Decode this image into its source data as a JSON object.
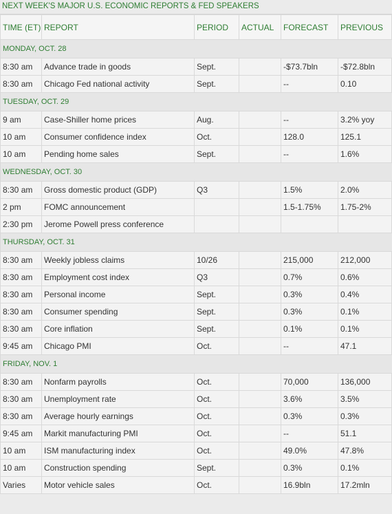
{
  "title": "NEXT WEEK'S MAJOR U.S. ECONOMIC REPORTS & FED SPEAKERS",
  "headers": [
    "TIME (ET)",
    "REPORT",
    "PERIOD",
    "ACTUAL",
    "FORECAST",
    "PREVIOUS"
  ],
  "days": [
    {
      "label": "MONDAY, OCT. 28",
      "rows": [
        [
          "8:30 am",
          "Advance trade in goods",
          "Sept.",
          "",
          "-$73.7bln",
          "-$72.8bln"
        ],
        [
          "8:30 am",
          "Chicago Fed national activity",
          "Sept.",
          "",
          "--",
          "0.10"
        ]
      ]
    },
    {
      "label": "TUESDAY, OCT. 29",
      "rows": [
        [
          "9 am",
          "Case-Shiller home prices",
          "Aug.",
          "",
          "--",
          "3.2% yoy"
        ],
        [
          "10 am",
          "Consumer confidence index",
          "Oct.",
          "",
          "128.0",
          "125.1"
        ],
        [
          "10 am",
          "Pending home sales",
          "Sept.",
          "",
          "--",
          "1.6%"
        ]
      ]
    },
    {
      "label": "WEDNESDAY, OCT. 30",
      "rows": [
        [
          "8:30 am",
          "Gross domestic product (GDP)",
          "Q3",
          "",
          "1.5%",
          "2.0%"
        ],
        [
          "2 pm",
          "FOMC announcement",
          "",
          "",
          "1.5-1.75%",
          "1.75-2%"
        ],
        [
          "2:30 pm",
          "Jerome Powell press conference",
          "",
          "",
          "",
          ""
        ]
      ]
    },
    {
      "label": "THURSDAY, OCT. 31",
      "rows": [
        [
          "8:30 am",
          "Weekly jobless claims",
          "10/26",
          "",
          "215,000",
          "212,000"
        ],
        [
          "8:30 am",
          "Employment cost index",
          "Q3",
          "",
          "0.7%",
          "0.6%"
        ],
        [
          "8:30 am",
          "Personal income",
          "Sept.",
          "",
          "0.3%",
          "0.4%"
        ],
        [
          "8:30 am",
          "Consumer spending",
          "Sept.",
          "",
          "0.3%",
          "0.1%"
        ],
        [
          "8:30 am",
          "Core inflation",
          "Sept.",
          "",
          "0.1%",
          "0.1%"
        ],
        [
          "9:45 am",
          "Chicago PMI",
          "Oct.",
          "",
          "--",
          "47.1"
        ]
      ]
    },
    {
      "label": "FRIDAY, NOV. 1",
      "rows": [
        [
          "8:30 am",
          "Nonfarm payrolls",
          "Oct.",
          "",
          "70,000",
          "136,000"
        ],
        [
          "8:30 am",
          "Unemployment rate",
          "Oct.",
          "",
          "3.6%",
          "3.5%"
        ],
        [
          "8:30 am",
          "Average hourly earnings",
          "Oct.",
          "",
          "0.3%",
          "0.3%"
        ],
        [
          "9:45 am",
          "Markit manufacturing PMI",
          "Oct.",
          "",
          "--",
          "51.1"
        ],
        [
          "10 am",
          "ISM manufacturing index",
          "Oct.",
          "",
          "49.0%",
          "47.8%"
        ],
        [
          "10 am",
          "Construction spending",
          "Sept.",
          "",
          "0.3%",
          "0.1%"
        ],
        [
          "Varies",
          "Motor vehicle sales",
          "Oct.",
          "",
          "16.9bln",
          "17.2mln"
        ]
      ]
    }
  ]
}
